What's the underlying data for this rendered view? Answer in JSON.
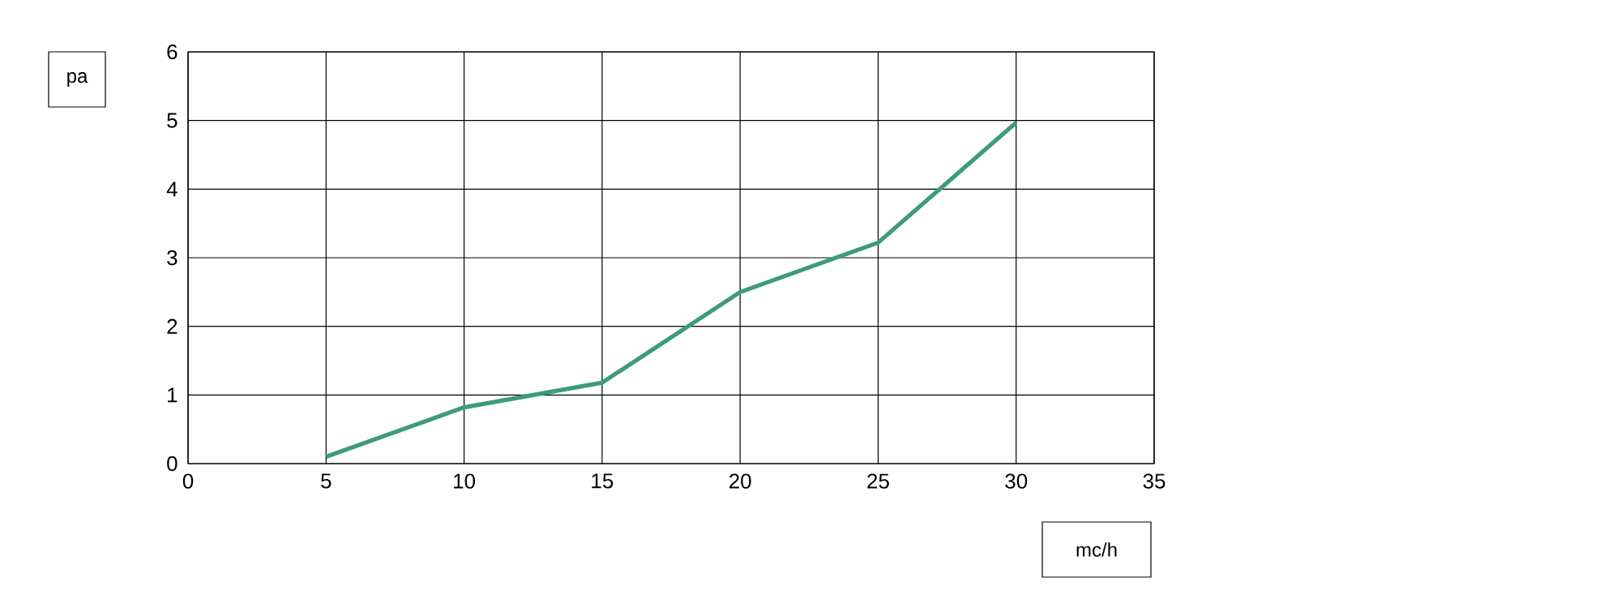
{
  "chart_data": {
    "type": "line",
    "xlabel": "mc/h",
    "ylabel": "pa",
    "x": [
      5,
      10,
      15,
      20,
      25,
      30
    ],
    "series": [
      {
        "color": "#3d9a7f",
        "values": [
          0.1,
          0.82,
          1.18,
          2.5,
          3.22,
          4.97
        ]
      }
    ],
    "xlim": [
      0,
      35
    ],
    "ylim": [
      0,
      6
    ],
    "xticks": [
      0,
      5,
      10,
      15,
      20,
      25,
      30,
      35
    ],
    "yticks": [
      0,
      1,
      2,
      3,
      4,
      5,
      6
    ],
    "grid": true,
    "marker": "none",
    "line_style": "solid"
  }
}
